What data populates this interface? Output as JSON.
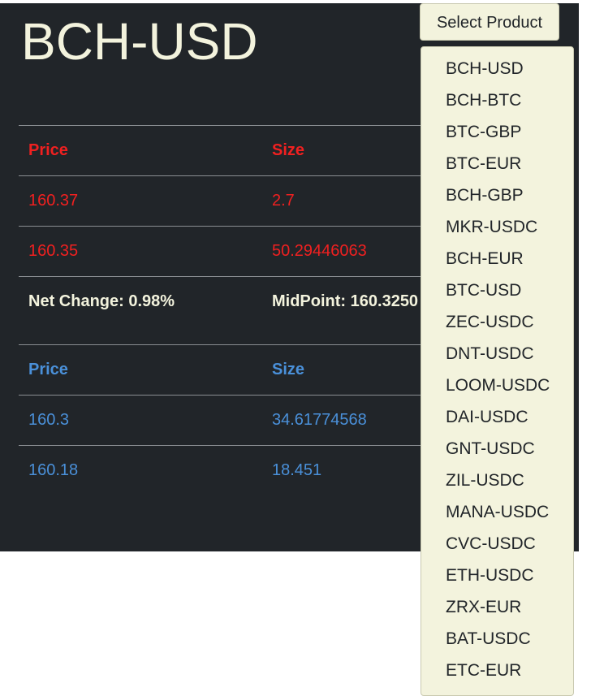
{
  "product": {
    "title": "BCH-USD"
  },
  "asks": {
    "headers": {
      "price": "Price",
      "size": "Size"
    },
    "rows": [
      {
        "price": "160.37",
        "size": "2.7"
      },
      {
        "price": "160.35",
        "size": "50.29446063"
      }
    ]
  },
  "summary": {
    "net_change": "Net Change: 0.98%",
    "midpoint": "MidPoint: 160.3250"
  },
  "bids": {
    "headers": {
      "price": "Price",
      "size": "Size"
    },
    "rows": [
      {
        "price": "160.3",
        "size": "34.61774568"
      },
      {
        "price": "160.18",
        "size": "18.451"
      }
    ]
  },
  "selector": {
    "button_label": "Select Product",
    "options": [
      "BCH-USD",
      "BCH-BTC",
      "BTC-GBP",
      "BTC-EUR",
      "BCH-GBP",
      "MKR-USDC",
      "BCH-EUR",
      "BTC-USD",
      "ZEC-USDC",
      "DNT-USDC",
      "LOOM-USDC",
      "DAI-USDC",
      "GNT-USDC",
      "ZIL-USDC",
      "MANA-USDC",
      "CVC-USDC",
      "ETH-USDC",
      "ZRX-EUR",
      "BAT-USDC",
      "ETC-EUR"
    ]
  },
  "colors": {
    "panel_bg": "#212529",
    "ask": "#f02020",
    "bid": "#4a90d9",
    "cream": "#f3f3dd"
  }
}
